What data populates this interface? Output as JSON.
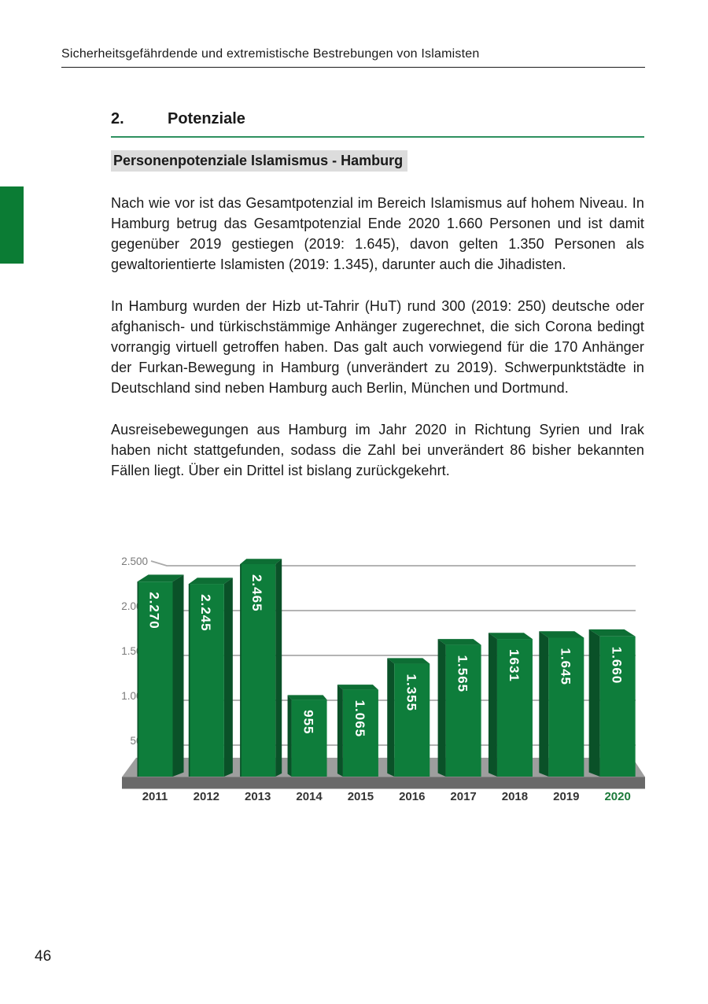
{
  "header": {
    "title": "Sicherheitsgefährdende und extremistische Bestrebungen von Islamisten"
  },
  "side_tab": {
    "color": "#0b7c34"
  },
  "section": {
    "number": "2.",
    "title": "Potenziale",
    "rule_color": "#2e9160"
  },
  "subheading": {
    "text": "Personenpotenziale Islamismus - Hamburg",
    "highlight_color": "#dcdcdc"
  },
  "paragraphs": [
    "Nach wie vor ist das Gesamtpotenzial im Bereich Islamismus auf hohem Niveau. In Hamburg betrug das Gesamtpotenzial Ende 2020 1.660 Personen und ist damit gegenüber 2019 gestiegen (2019: 1.645), davon gelten 1.350 Personen als gewaltorientierte Islamisten (2019: 1.345), darunter auch die Jihadisten.",
    "In Hamburg wurden der Hizb ut-Tahrir (HuT) rund 300 (2019: 250) deutsche oder afghanisch- und türkischstämmige Anhänger zugerechnet, die sich Corona bedingt vorrangig virtuell getroffen haben. Das galt auch vorwiegend für die 170 Anhänger der Furkan-Bewegung in Hamburg (unverändert zu 2019). Schwerpunktstädte in Deutschland sind neben Hamburg auch Berlin, München und Dortmund.",
    "Ausreisebewegungen aus Hamburg im Jahr 2020 in Richtung Syrien und Irak haben nicht stattgefunden, sodass die Zahl bei unverändert 86 bisher bekannten Fällen liegt. Über ein Drittel ist bislang zurückgekehrt."
  ],
  "chart_data": {
    "type": "bar",
    "title": "",
    "categories": [
      "2011",
      "2012",
      "2013",
      "2014",
      "2015",
      "2016",
      "2017",
      "2018",
      "2019",
      "2020"
    ],
    "values": [
      2270,
      2245,
      2465,
      955,
      1065,
      1355,
      1565,
      1631,
      1645,
      1660
    ],
    "value_labels": [
      "2.270",
      "2.245",
      "2.465",
      "955",
      "1.065",
      "1.355",
      "1.565",
      "1631",
      "1.645",
      "1.660"
    ],
    "y_ticks": [
      "2.500",
      "2.000",
      "1.500",
      "1.000",
      "500"
    ],
    "y_tick_values": [
      2500,
      2000,
      1500,
      1000,
      500
    ],
    "ylim": [
      0,
      2500
    ],
    "xlabel": "",
    "ylabel": "",
    "grid": true,
    "legend_position": "none",
    "style": "3d-column",
    "bar_color": "#0e7d3b",
    "bar_side_color": "#0a5128",
    "bar_top_color": "#0d6e34",
    "value_label_color": "#ffffff",
    "grid_color": "#a9a9a9",
    "floor_top_color": "#9e9e9e",
    "floor_front_color": "#696969",
    "axis_label_color": "#7a7a7a",
    "x_label_color": "#333333",
    "highlight_year": "2020",
    "highlight_color": "#1c7a3a"
  },
  "footer": {
    "page_number": "46"
  }
}
